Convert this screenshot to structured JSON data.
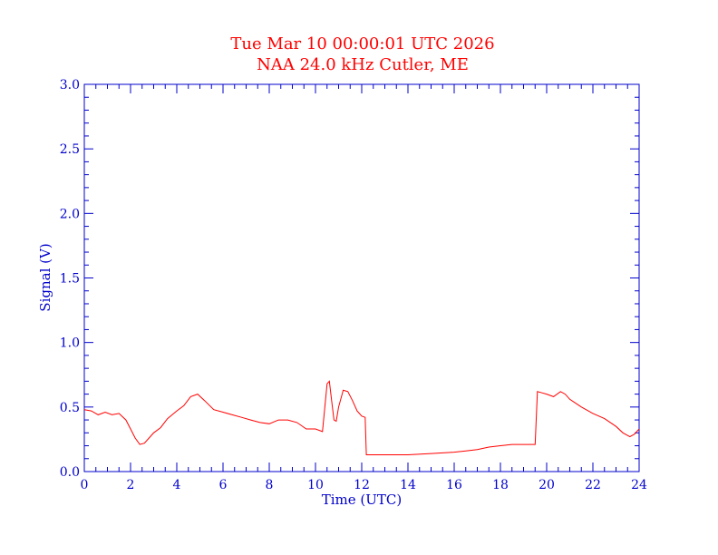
{
  "chart_data": {
    "type": "line",
    "title": "Tue Mar 10 00:00:01 UTC 2026",
    "subtitle": "NAA 24.0 kHz Cutler, ME",
    "xlabel": "Time (UTC)",
    "ylabel": "Signal (V)",
    "xlim": [
      0,
      24
    ],
    "ylim": [
      0,
      3.0
    ],
    "x_ticks": [
      "0",
      "2",
      "4",
      "6",
      "8",
      "10",
      "12",
      "14",
      "16",
      "18",
      "20",
      "22",
      "24"
    ],
    "y_ticks": [
      "0.0",
      "0.5",
      "1.0",
      "1.5",
      "2.0",
      "2.5",
      "3.0"
    ],
    "grid": false,
    "colors": {
      "axes": "#0000cc",
      "title": "#ff0000",
      "series": "#ff0000"
    },
    "series": [
      {
        "x": [
          0.0,
          0.3,
          0.6,
          0.9,
          1.2,
          1.5,
          1.8,
          2.0,
          2.2,
          2.4,
          2.6,
          2.8,
          3.0,
          3.3,
          3.6,
          4.0,
          4.3,
          4.6,
          4.9,
          5.2,
          5.6,
          6.0,
          6.4,
          6.8,
          7.2,
          7.6,
          8.0,
          8.4,
          8.8,
          9.2,
          9.6,
          10.0,
          10.3,
          10.5,
          10.6,
          10.7,
          10.8,
          10.9,
          11.0,
          11.2,
          11.4,
          11.6,
          11.8,
          12.0,
          12.15,
          12.2,
          12.6,
          13.0,
          14.0,
          15.0,
          16.0,
          16.5,
          17.0,
          17.5,
          18.0,
          18.5,
          19.0,
          19.5,
          19.6,
          19.8,
          20.0,
          20.3,
          20.6,
          20.8,
          21.0,
          21.5,
          22.0,
          22.5,
          23.0,
          23.3,
          23.6,
          23.8,
          24.0
        ],
        "y": [
          0.48,
          0.47,
          0.44,
          0.46,
          0.44,
          0.45,
          0.4,
          0.33,
          0.26,
          0.21,
          0.22,
          0.26,
          0.3,
          0.34,
          0.41,
          0.47,
          0.51,
          0.58,
          0.6,
          0.55,
          0.48,
          0.46,
          0.44,
          0.42,
          0.4,
          0.38,
          0.37,
          0.4,
          0.4,
          0.38,
          0.33,
          0.33,
          0.31,
          0.68,
          0.7,
          0.55,
          0.4,
          0.39,
          0.5,
          0.63,
          0.62,
          0.55,
          0.47,
          0.43,
          0.42,
          0.13,
          0.13,
          0.13,
          0.13,
          0.14,
          0.15,
          0.16,
          0.17,
          0.19,
          0.2,
          0.21,
          0.21,
          0.21,
          0.62,
          0.61,
          0.6,
          0.58,
          0.62,
          0.6,
          0.56,
          0.5,
          0.45,
          0.41,
          0.35,
          0.3,
          0.27,
          0.29,
          0.33
        ]
      }
    ]
  }
}
